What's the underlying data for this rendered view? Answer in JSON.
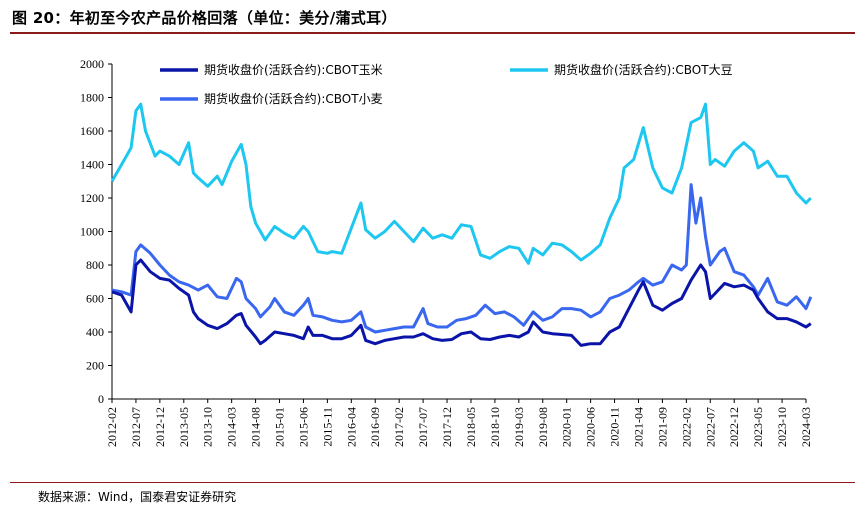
{
  "figure": {
    "title": "图 20：年初至今农产品价格回落（单位：美分/蒲式耳）",
    "source": "数据来源：Wind，国泰君安证券研究"
  },
  "chart_data": {
    "type": "line",
    "title": "",
    "xlabel": "",
    "ylabel": "",
    "ylim": [
      0,
      2000
    ],
    "yticks": [
      0,
      200,
      400,
      600,
      800,
      1000,
      1200,
      1400,
      1600,
      1800,
      2000
    ],
    "xticks": [
      "2012-02",
      "2012-07",
      "2012-12",
      "2013-05",
      "2013-10",
      "2014-03",
      "2014-08",
      "2015-01",
      "2015-06",
      "2015-11",
      "2016-04",
      "2016-09",
      "2017-02",
      "2017-07",
      "2017-12",
      "2018-05",
      "2018-10",
      "2019-03",
      "2019-08",
      "2020-01",
      "2020-06",
      "2020-11",
      "2021-04",
      "2021-09",
      "2022-02",
      "2022-07",
      "2022-12",
      "2023-05",
      "2023-10",
      "2024-03"
    ],
    "legend_position": "top",
    "grid": false,
    "series": [
      {
        "name": "期货收盘价(活跃合约):CBOT玉米",
        "color": "#0a14a8",
        "points": [
          [
            "2012-02",
            640
          ],
          [
            "2012-04",
            620
          ],
          [
            "2012-06",
            520
          ],
          [
            "2012-07",
            800
          ],
          [
            "2012-08",
            830
          ],
          [
            "2012-10",
            760
          ],
          [
            "2012-12",
            720
          ],
          [
            "2013-02",
            710
          ],
          [
            "2013-04",
            660
          ],
          [
            "2013-06",
            620
          ],
          [
            "2013-07",
            520
          ],
          [
            "2013-08",
            480
          ],
          [
            "2013-10",
            440
          ],
          [
            "2013-12",
            420
          ],
          [
            "2014-02",
            450
          ],
          [
            "2014-04",
            500
          ],
          [
            "2014-05",
            510
          ],
          [
            "2014-06",
            440
          ],
          [
            "2014-08",
            370
          ],
          [
            "2014-09",
            330
          ],
          [
            "2014-10",
            350
          ],
          [
            "2014-12",
            400
          ],
          [
            "2015-02",
            390
          ],
          [
            "2015-04",
            380
          ],
          [
            "2015-06",
            360
          ],
          [
            "2015-07",
            430
          ],
          [
            "2015-08",
            380
          ],
          [
            "2015-10",
            380
          ],
          [
            "2015-12",
            360
          ],
          [
            "2016-02",
            360
          ],
          [
            "2016-04",
            380
          ],
          [
            "2016-06",
            440
          ],
          [
            "2016-07",
            350
          ],
          [
            "2016-09",
            330
          ],
          [
            "2016-11",
            350
          ],
          [
            "2017-01",
            360
          ],
          [
            "2017-03",
            370
          ],
          [
            "2017-05",
            370
          ],
          [
            "2017-07",
            390
          ],
          [
            "2017-09",
            360
          ],
          [
            "2017-11",
            350
          ],
          [
            "2018-01",
            355
          ],
          [
            "2018-03",
            390
          ],
          [
            "2018-05",
            400
          ],
          [
            "2018-07",
            360
          ],
          [
            "2018-09",
            355
          ],
          [
            "2018-11",
            370
          ],
          [
            "2019-01",
            380
          ],
          [
            "2019-03",
            370
          ],
          [
            "2019-05",
            400
          ],
          [
            "2019-06",
            460
          ],
          [
            "2019-08",
            400
          ],
          [
            "2019-10",
            390
          ],
          [
            "2019-12",
            385
          ],
          [
            "2020-02",
            380
          ],
          [
            "2020-04",
            320
          ],
          [
            "2020-06",
            330
          ],
          [
            "2020-08",
            330
          ],
          [
            "2020-10",
            400
          ],
          [
            "2020-12",
            430
          ],
          [
            "2021-02",
            540
          ],
          [
            "2021-04",
            650
          ],
          [
            "2021-05",
            700
          ],
          [
            "2021-07",
            560
          ],
          [
            "2021-09",
            530
          ],
          [
            "2021-11",
            570
          ],
          [
            "2022-01",
            600
          ],
          [
            "2022-03",
            710
          ],
          [
            "2022-05",
            800
          ],
          [
            "2022-06",
            760
          ],
          [
            "2022-07",
            600
          ],
          [
            "2022-08",
            630
          ],
          [
            "2022-10",
            690
          ],
          [
            "2022-12",
            670
          ],
          [
            "2023-02",
            680
          ],
          [
            "2023-04",
            650
          ],
          [
            "2023-05",
            600
          ],
          [
            "2023-07",
            520
          ],
          [
            "2023-09",
            480
          ],
          [
            "2023-11",
            480
          ],
          [
            "2024-01",
            460
          ],
          [
            "2024-03",
            430
          ],
          [
            "2024-04",
            450
          ]
        ]
      },
      {
        "name": "期货收盘价(活跃合约):CBOT大豆",
        "color": "#1ec7f0",
        "points": [
          [
            "2012-02",
            1300
          ],
          [
            "2012-04",
            1400
          ],
          [
            "2012-06",
            1500
          ],
          [
            "2012-07",
            1720
          ],
          [
            "2012-08",
            1760
          ],
          [
            "2012-09",
            1600
          ],
          [
            "2012-11",
            1450
          ],
          [
            "2012-12",
            1480
          ],
          [
            "2013-02",
            1450
          ],
          [
            "2013-04",
            1400
          ],
          [
            "2013-06",
            1530
          ],
          [
            "2013-07",
            1350
          ],
          [
            "2013-08",
            1320
          ],
          [
            "2013-10",
            1270
          ],
          [
            "2013-12",
            1330
          ],
          [
            "2014-01",
            1280
          ],
          [
            "2014-03",
            1420
          ],
          [
            "2014-05",
            1520
          ],
          [
            "2014-06",
            1400
          ],
          [
            "2014-07",
            1150
          ],
          [
            "2014-08",
            1050
          ],
          [
            "2014-10",
            950
          ],
          [
            "2014-12",
            1030
          ],
          [
            "2015-02",
            990
          ],
          [
            "2015-04",
            960
          ],
          [
            "2015-06",
            1030
          ],
          [
            "2015-07",
            1000
          ],
          [
            "2015-09",
            880
          ],
          [
            "2015-11",
            870
          ],
          [
            "2015-12",
            880
          ],
          [
            "2016-02",
            870
          ],
          [
            "2016-04",
            1020
          ],
          [
            "2016-06",
            1170
          ],
          [
            "2016-07",
            1010
          ],
          [
            "2016-09",
            960
          ],
          [
            "2016-11",
            1000
          ],
          [
            "2017-01",
            1060
          ],
          [
            "2017-03",
            1000
          ],
          [
            "2017-05",
            940
          ],
          [
            "2017-07",
            1020
          ],
          [
            "2017-09",
            960
          ],
          [
            "2017-11",
            980
          ],
          [
            "2018-01",
            960
          ],
          [
            "2018-03",
            1040
          ],
          [
            "2018-05",
            1030
          ],
          [
            "2018-07",
            860
          ],
          [
            "2018-09",
            840
          ],
          [
            "2018-11",
            880
          ],
          [
            "2019-01",
            910
          ],
          [
            "2019-03",
            900
          ],
          [
            "2019-05",
            810
          ],
          [
            "2019-06",
            900
          ],
          [
            "2019-08",
            860
          ],
          [
            "2019-10",
            930
          ],
          [
            "2019-12",
            920
          ],
          [
            "2020-02",
            880
          ],
          [
            "2020-04",
            830
          ],
          [
            "2020-06",
            870
          ],
          [
            "2020-08",
            920
          ],
          [
            "2020-10",
            1080
          ],
          [
            "2020-12",
            1200
          ],
          [
            "2021-01",
            1380
          ],
          [
            "2021-03",
            1430
          ],
          [
            "2021-05",
            1620
          ],
          [
            "2021-07",
            1380
          ],
          [
            "2021-09",
            1260
          ],
          [
            "2021-11",
            1230
          ],
          [
            "2022-01",
            1380
          ],
          [
            "2022-03",
            1650
          ],
          [
            "2022-05",
            1680
          ],
          [
            "2022-06",
            1760
          ],
          [
            "2022-07",
            1400
          ],
          [
            "2022-08",
            1430
          ],
          [
            "2022-10",
            1390
          ],
          [
            "2022-12",
            1480
          ],
          [
            "2023-02",
            1530
          ],
          [
            "2023-04",
            1480
          ],
          [
            "2023-05",
            1380
          ],
          [
            "2023-07",
            1420
          ],
          [
            "2023-09",
            1330
          ],
          [
            "2023-11",
            1330
          ],
          [
            "2024-01",
            1230
          ],
          [
            "2024-03",
            1170
          ],
          [
            "2024-04",
            1200
          ]
        ]
      },
      {
        "name": "期货收盘价(活跃合约):CBOT小麦",
        "color": "#3a67f0",
        "points": [
          [
            "2012-02",
            650
          ],
          [
            "2012-04",
            640
          ],
          [
            "2012-06",
            620
          ],
          [
            "2012-07",
            880
          ],
          [
            "2012-08",
            920
          ],
          [
            "2012-10",
            870
          ],
          [
            "2012-12",
            800
          ],
          [
            "2013-02",
            740
          ],
          [
            "2013-04",
            700
          ],
          [
            "2013-06",
            680
          ],
          [
            "2013-08",
            650
          ],
          [
            "2013-10",
            680
          ],
          [
            "2013-12",
            610
          ],
          [
            "2014-02",
            600
          ],
          [
            "2014-04",
            720
          ],
          [
            "2014-05",
            700
          ],
          [
            "2014-06",
            600
          ],
          [
            "2014-08",
            540
          ],
          [
            "2014-09",
            490
          ],
          [
            "2014-11",
            550
          ],
          [
            "2014-12",
            600
          ],
          [
            "2015-02",
            520
          ],
          [
            "2015-04",
            500
          ],
          [
            "2015-06",
            560
          ],
          [
            "2015-07",
            600
          ],
          [
            "2015-08",
            500
          ],
          [
            "2015-10",
            490
          ],
          [
            "2015-12",
            470
          ],
          [
            "2016-02",
            460
          ],
          [
            "2016-04",
            470
          ],
          [
            "2016-06",
            520
          ],
          [
            "2016-07",
            430
          ],
          [
            "2016-09",
            400
          ],
          [
            "2016-11",
            410
          ],
          [
            "2017-01",
            420
          ],
          [
            "2017-03",
            430
          ],
          [
            "2017-05",
            430
          ],
          [
            "2017-07",
            540
          ],
          [
            "2017-08",
            450
          ],
          [
            "2017-10",
            430
          ],
          [
            "2017-12",
            430
          ],
          [
            "2018-02",
            470
          ],
          [
            "2018-04",
            480
          ],
          [
            "2018-06",
            500
          ],
          [
            "2018-08",
            560
          ],
          [
            "2018-10",
            510
          ],
          [
            "2018-12",
            520
          ],
          [
            "2019-02",
            490
          ],
          [
            "2019-04",
            440
          ],
          [
            "2019-06",
            520
          ],
          [
            "2019-08",
            470
          ],
          [
            "2019-10",
            490
          ],
          [
            "2019-12",
            540
          ],
          [
            "2020-02",
            540
          ],
          [
            "2020-04",
            530
          ],
          [
            "2020-06",
            490
          ],
          [
            "2020-08",
            520
          ],
          [
            "2020-10",
            600
          ],
          [
            "2020-12",
            620
          ],
          [
            "2021-02",
            650
          ],
          [
            "2021-04",
            700
          ],
          [
            "2021-05",
            720
          ],
          [
            "2021-07",
            680
          ],
          [
            "2021-09",
            700
          ],
          [
            "2021-11",
            800
          ],
          [
            "2022-01",
            770
          ],
          [
            "2022-02",
            800
          ],
          [
            "2022-03",
            1280
          ],
          [
            "2022-04",
            1050
          ],
          [
            "2022-05",
            1200
          ],
          [
            "2022-06",
            970
          ],
          [
            "2022-07",
            800
          ],
          [
            "2022-09",
            880
          ],
          [
            "2022-10",
            900
          ],
          [
            "2022-12",
            760
          ],
          [
            "2023-02",
            740
          ],
          [
            "2023-04",
            670
          ],
          [
            "2023-05",
            620
          ],
          [
            "2023-07",
            720
          ],
          [
            "2023-09",
            580
          ],
          [
            "2023-11",
            560
          ],
          [
            "2024-01",
            610
          ],
          [
            "2024-03",
            540
          ],
          [
            "2024-04",
            610
          ]
        ]
      }
    ]
  }
}
